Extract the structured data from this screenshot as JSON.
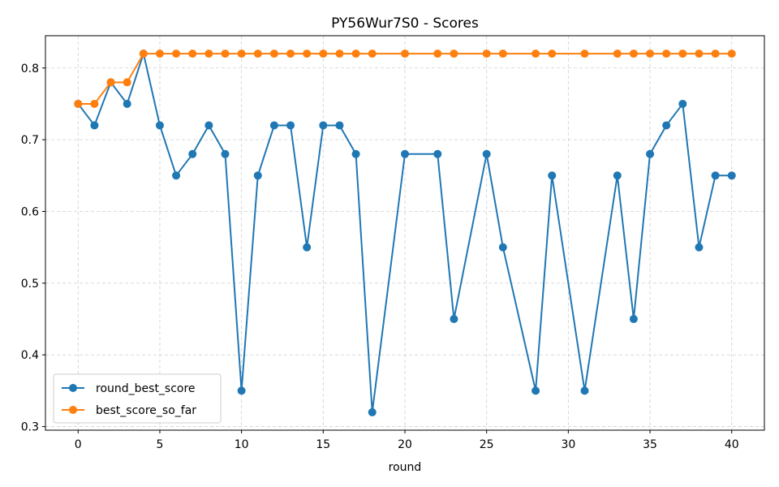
{
  "chart_data": {
    "type": "line",
    "title": "PY56Wur7S0 - Scores",
    "xlabel": "round",
    "ylabel": "",
    "xlim": [
      -2,
      42
    ],
    "ylim": [
      0.295,
      0.845
    ],
    "xticks": [
      0,
      5,
      10,
      15,
      20,
      25,
      30,
      35,
      40
    ],
    "yticks": [
      0.3,
      0.4,
      0.5,
      0.6,
      0.7,
      0.8
    ],
    "grid": true,
    "legend_position": "bottom-left",
    "series": [
      {
        "name": "round_best_score",
        "color": "#1f77b4",
        "x": [
          0,
          1,
          2,
          3,
          4,
          5,
          6,
          7,
          8,
          9,
          10,
          11,
          12,
          13,
          14,
          15,
          16,
          17,
          18,
          20,
          22,
          23,
          25,
          26,
          28,
          29,
          31,
          33,
          34,
          35,
          36,
          37,
          38,
          39,
          40
        ],
        "y": [
          0.75,
          0.72,
          0.78,
          0.75,
          0.82,
          0.72,
          0.65,
          0.68,
          0.72,
          0.68,
          0.35,
          0.65,
          0.72,
          0.72,
          0.55,
          0.72,
          0.72,
          0.68,
          0.32,
          0.68,
          0.68,
          0.45,
          0.68,
          0.55,
          0.35,
          0.65,
          0.35,
          0.65,
          0.45,
          0.68,
          0.72,
          0.75,
          0.55,
          0.65,
          0.65
        ]
      },
      {
        "name": "best_score_so_far",
        "color": "#ff7f0e",
        "x": [
          0,
          1,
          2,
          3,
          4,
          5,
          6,
          7,
          8,
          9,
          10,
          11,
          12,
          13,
          14,
          15,
          16,
          17,
          18,
          20,
          22,
          23,
          25,
          26,
          28,
          29,
          31,
          33,
          34,
          35,
          36,
          37,
          38,
          39,
          40
        ],
        "y": [
          0.75,
          0.75,
          0.78,
          0.78,
          0.82,
          0.82,
          0.82,
          0.82,
          0.82,
          0.82,
          0.82,
          0.82,
          0.82,
          0.82,
          0.82,
          0.82,
          0.82,
          0.82,
          0.82,
          0.82,
          0.82,
          0.82,
          0.82,
          0.82,
          0.82,
          0.82,
          0.82,
          0.82,
          0.82,
          0.82,
          0.82,
          0.82,
          0.82,
          0.82,
          0.82
        ]
      }
    ]
  }
}
